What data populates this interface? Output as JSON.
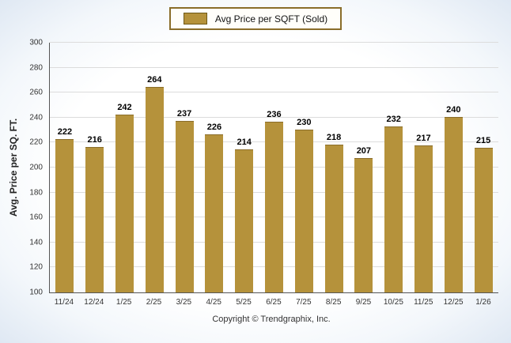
{
  "legend": {
    "label": "Avg Price per SQFT (Sold)"
  },
  "footer": {
    "copyright": "Copyright © Trendgraphix, Inc."
  },
  "chart_data": {
    "type": "bar",
    "title": "",
    "xlabel": "",
    "ylabel": "Avg. Price per SQ. FT.",
    "categories": [
      "11/24",
      "12/24",
      "1/25",
      "2/25",
      "3/25",
      "4/25",
      "5/25",
      "6/25",
      "7/25",
      "8/25",
      "9/25",
      "10/25",
      "11/25",
      "12/25",
      "1/26"
    ],
    "values": [
      222,
      216,
      242,
      264,
      237,
      226,
      214,
      236,
      230,
      218,
      207,
      232,
      217,
      240,
      215
    ],
    "series_name": "Avg Price per SQFT (Sold)",
    "ylim": [
      100,
      300
    ],
    "ytick_step": 20,
    "bar_color": "#B5923B",
    "grid": true,
    "legend_position": "top"
  }
}
